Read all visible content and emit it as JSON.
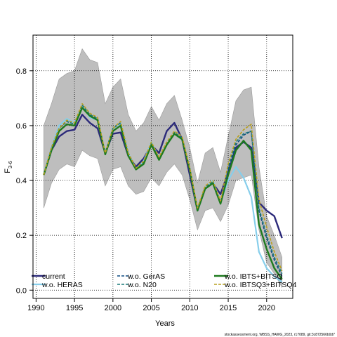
{
  "chart_data": {
    "type": "line",
    "xlabel": "Years",
    "ylabel_main": "F",
    "ylabel_sub": "3-6",
    "xlim": [
      1990,
      2022
    ],
    "ylim": [
      0,
      0.8
    ],
    "x_ticks": [
      1990,
      1995,
      2000,
      2005,
      2010,
      2015,
      2020
    ],
    "y_ticks": [
      0.0,
      0.2,
      0.4,
      0.6,
      0.8
    ],
    "y_tick_labels": [
      "0.0",
      "0.2",
      "0.4",
      "0.6",
      "0.8"
    ],
    "grid": true,
    "legend_position": "bottom",
    "footer": "stockassessment.org, WBSS_HAWG_2023, r17089, git:3c872566b0d7",
    "x": [
      1991,
      1992,
      1993,
      1994,
      1995,
      1996,
      1997,
      1998,
      1999,
      2000,
      2001,
      2002,
      2003,
      2004,
      2005,
      2006,
      2007,
      2008,
      2009,
      2010,
      2011,
      2012,
      2013,
      2014,
      2015,
      2016,
      2017,
      2018,
      2019,
      2020,
      2021,
      2022
    ],
    "band": {
      "upper": [
        0.6,
        0.68,
        0.77,
        0.79,
        0.8,
        0.88,
        0.84,
        0.83,
        0.68,
        0.74,
        0.77,
        0.64,
        0.58,
        0.61,
        0.67,
        0.62,
        0.68,
        0.71,
        0.62,
        0.52,
        0.39,
        0.5,
        0.52,
        0.43,
        0.56,
        0.69,
        0.73,
        0.74,
        0.45,
        0.27,
        0.2,
        0.12
      ],
      "lower": [
        0.3,
        0.39,
        0.44,
        0.46,
        0.45,
        0.51,
        0.49,
        0.48,
        0.38,
        0.44,
        0.45,
        0.38,
        0.35,
        0.36,
        0.41,
        0.38,
        0.43,
        0.46,
        0.42,
        0.33,
        0.22,
        0.29,
        0.3,
        0.25,
        0.31,
        0.4,
        0.41,
        0.42,
        0.22,
        0.1,
        0.06,
        0.01
      ]
    },
    "series": [
      {
        "name": "current",
        "color": "#2c2a7a",
        "width": 2.4,
        "dash": "",
        "values": [
          0.42,
          0.51,
          0.56,
          0.58,
          0.585,
          0.64,
          0.61,
          0.59,
          0.5,
          0.57,
          0.575,
          0.49,
          0.45,
          0.48,
          0.53,
          0.5,
          0.58,
          0.61,
          0.55,
          0.42,
          0.29,
          0.37,
          0.39,
          0.35,
          0.43,
          0.52,
          0.54,
          0.52,
          0.32,
          0.29,
          0.27,
          0.19
        ]
      },
      {
        "name": "w.o. HERAS",
        "color": "#87ceeb",
        "width": 2.2,
        "dash": "",
        "values": [
          0.42,
          0.52,
          0.6,
          0.625,
          0.61,
          0.67,
          0.63,
          0.62,
          0.5,
          0.59,
          0.61,
          0.5,
          0.44,
          0.47,
          0.54,
          0.48,
          0.53,
          0.57,
          0.55,
          0.44,
          0.29,
          0.37,
          0.4,
          0.32,
          0.4,
          0.45,
          0.41,
          0.34,
          0.14,
          0.08,
          0.05,
          0.03
        ]
      },
      {
        "name": "w.o. GerAS",
        "color": "#0e4b82",
        "width": 1.6,
        "dash": "4,2",
        "values": [
          0.42,
          0.52,
          0.59,
          0.615,
          0.605,
          0.675,
          0.64,
          0.625,
          0.5,
          0.59,
          0.61,
          0.5,
          0.445,
          0.465,
          0.535,
          0.48,
          0.535,
          0.575,
          0.555,
          0.44,
          0.295,
          0.375,
          0.395,
          0.32,
          0.44,
          0.53,
          0.565,
          0.58,
          0.29,
          0.19,
          0.11,
          0.05
        ]
      },
      {
        "name": "w.o. N20",
        "color": "#1a7a7a",
        "width": 1.6,
        "dash": "4,2",
        "values": [
          0.42,
          0.52,
          0.59,
          0.615,
          0.605,
          0.675,
          0.64,
          0.625,
          0.5,
          0.59,
          0.61,
          0.5,
          0.445,
          0.465,
          0.535,
          0.48,
          0.535,
          0.575,
          0.555,
          0.44,
          0.295,
          0.375,
          0.395,
          0.32,
          0.45,
          0.54,
          0.57,
          0.58,
          0.3,
          0.2,
          0.12,
          0.06
        ]
      },
      {
        "name": "w.o. IBTS+BITSQ",
        "color": "#1e7a1e",
        "width": 2.4,
        "dash": "",
        "values": [
          0.42,
          0.51,
          0.58,
          0.605,
          0.6,
          0.665,
          0.635,
          0.62,
          0.495,
          0.58,
          0.6,
          0.49,
          0.44,
          0.46,
          0.53,
          0.475,
          0.53,
          0.57,
          0.55,
          0.44,
          0.29,
          0.37,
          0.39,
          0.315,
          0.42,
          0.51,
          0.545,
          0.51,
          0.24,
          0.15,
          0.08,
          0.04
        ]
      },
      {
        "name": "w.o. IBTSQ3+BITSQ4",
        "color": "#b8a020",
        "width": 1.6,
        "dash": "4,2",
        "values": [
          0.42,
          0.52,
          0.59,
          0.62,
          0.61,
          0.68,
          0.645,
          0.63,
          0.5,
          0.59,
          0.615,
          0.5,
          0.445,
          0.47,
          0.54,
          0.485,
          0.54,
          0.58,
          0.56,
          0.445,
          0.3,
          0.38,
          0.4,
          0.325,
          0.46,
          0.55,
          0.585,
          0.605,
          0.33,
          0.23,
          0.14,
          0.07
        ]
      }
    ]
  }
}
